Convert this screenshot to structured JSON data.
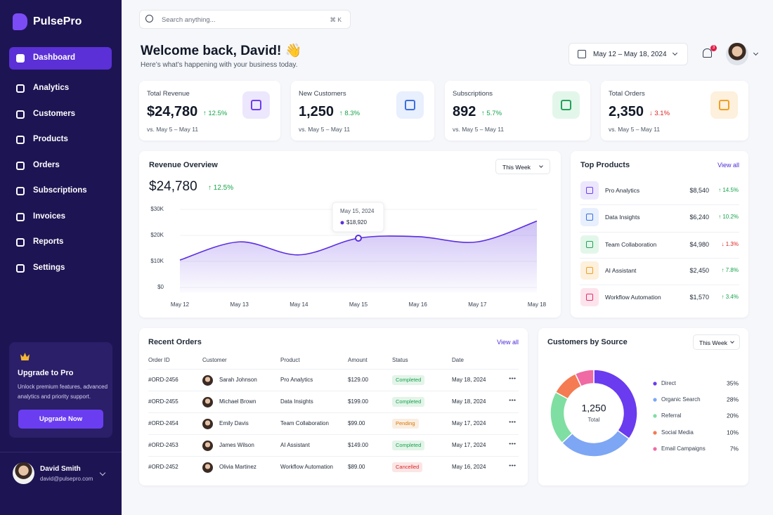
{
  "brand": "PulsePro",
  "nav": [
    {
      "label": "Dashboard",
      "active": true
    },
    {
      "label": "Analytics"
    },
    {
      "label": "Customers"
    },
    {
      "label": "Products"
    },
    {
      "label": "Orders"
    },
    {
      "label": "Subscriptions"
    },
    {
      "label": "Invoices"
    },
    {
      "label": "Reports"
    },
    {
      "label": "Settings"
    }
  ],
  "upgrade": {
    "title": "Upgrade to Pro",
    "text": "Unlock premium features, advanced analytics and priority support.",
    "button": "Upgrade Now"
  },
  "user": {
    "name": "David Smith",
    "email": "david@pulsepro.com"
  },
  "search": {
    "placeholder": "Search anything...",
    "shortcut": "⌘ K"
  },
  "header": {
    "title": "Welcome back, David! 👋",
    "subtitle": "Here’s what’s happening with your business today.",
    "date_range": "May 12 – May 18, 2024",
    "notifications": "3"
  },
  "kpis": [
    {
      "label": "Total Revenue",
      "value": "$24,780",
      "change": "↑ 12.5%",
      "period": "vs. May 5 – May 11"
    },
    {
      "label": "New Customers",
      "value": "1,250",
      "change": "↑ 8.3%",
      "period": "vs. May 5 – May 11"
    },
    {
      "label": "Subscriptions",
      "value": "892",
      "change": "↑ 5.7%",
      "period": "vs. May 5 – May 11"
    },
    {
      "label": "Total Orders",
      "value": "2,350",
      "change": "↓ 3.1%",
      "period": "vs. May 5 – May 11"
    }
  ],
  "top_products": {
    "title": "Top Products",
    "link": "View all",
    "rows": [
      {
        "name": "Pro Analytics",
        "revenue": "$8,540",
        "change": "↑ 14.5%"
      },
      {
        "name": "Data Insights",
        "revenue": "$6,240",
        "change": "↑ 10.2%"
      },
      {
        "name": "Team Collaboration",
        "revenue": "$4,980",
        "change": "↓ 1.3%"
      },
      {
        "name": "AI Assistant",
        "revenue": "$2,450",
        "change": "↑ 7.8%"
      },
      {
        "name": "Workflow Automation",
        "revenue": "$1,570",
        "change": "↑ 3.4%"
      }
    ]
  },
  "orders": {
    "title": "Recent Orders",
    "link": "View all",
    "columns": [
      "Order ID",
      "Customer",
      "Product",
      "Amount",
      "Status",
      "Date"
    ],
    "rows": [
      {
        "id": "#ORD-2456",
        "customer": "Sarah Johnson",
        "product": "Pro Analytics",
        "amount": "$129.00",
        "status": "Completed",
        "status_color": "#16a34a",
        "date": "May 18, 2024"
      },
      {
        "id": "#ORD-2455",
        "customer": "Michael Brown",
        "product": "Data Insights",
        "amount": "$199.00",
        "status": "Completed",
        "status_color": "#16a34a",
        "date": "May 18, 2024"
      },
      {
        "id": "#ORD-2454",
        "customer": "Emily Davis",
        "product": "Team Collaboration",
        "amount": "$99.00",
        "status": "Pending",
        "status_color": "#d97706",
        "date": "May 17, 2024"
      },
      {
        "id": "#ORD-2453",
        "customer": "James Wilson",
        "product": "AI Assistant",
        "amount": "$149.00",
        "status": "Completed",
        "status_color": "#16a34a",
        "date": "May 17, 2024"
      },
      {
        "id": "#ORD-2452",
        "customer": "Olivia Martinez",
        "product": "Workflow Automation",
        "amount": "$89.00",
        "status": "Cancelled",
        "status_color": "#dc2626",
        "date": "May 16, 2024"
      }
    ]
  },
  "chart_data": [
    {
      "type": "area",
      "title": "Revenue Overview",
      "total": "$24,780",
      "change": "↑ 12.5%",
      "period_select": "This Week",
      "categories": [
        "May 12",
        "May 13",
        "May 14",
        "May 15",
        "May 16",
        "May 17",
        "May 18"
      ],
      "values": [
        10500,
        17500,
        12500,
        18920,
        19500,
        17500,
        25500
      ],
      "color": "#5b2ee0",
      "ylim": [
        0,
        30000
      ],
      "yticks": [
        {
          "value": 0,
          "label": "$0"
        },
        {
          "value": 10000,
          "label": "$10K"
        },
        {
          "value": 20000,
          "label": "$20K"
        },
        {
          "value": 30000,
          "label": "$30K"
        }
      ],
      "tooltip": {
        "date": "May 15, 2024",
        "value": "$18,920"
      }
    },
    {
      "type": "pie",
      "title": "Customers by Source",
      "period_select": "This Week",
      "center_value": "1,250",
      "center_label": "Total",
      "categories": [
        "Direct",
        "Organic Search",
        "Referral",
        "Social Media",
        "Email Campaigns"
      ],
      "values": [
        35,
        28,
        20,
        10,
        7
      ],
      "value_labels": [
        "35%",
        "28%",
        "20%",
        "10%",
        "7%"
      ],
      "colors": [
        "#6a3bef",
        "#7da6f4",
        "#7fdea1",
        "#f47b52",
        "#f06aa3"
      ]
    }
  ]
}
